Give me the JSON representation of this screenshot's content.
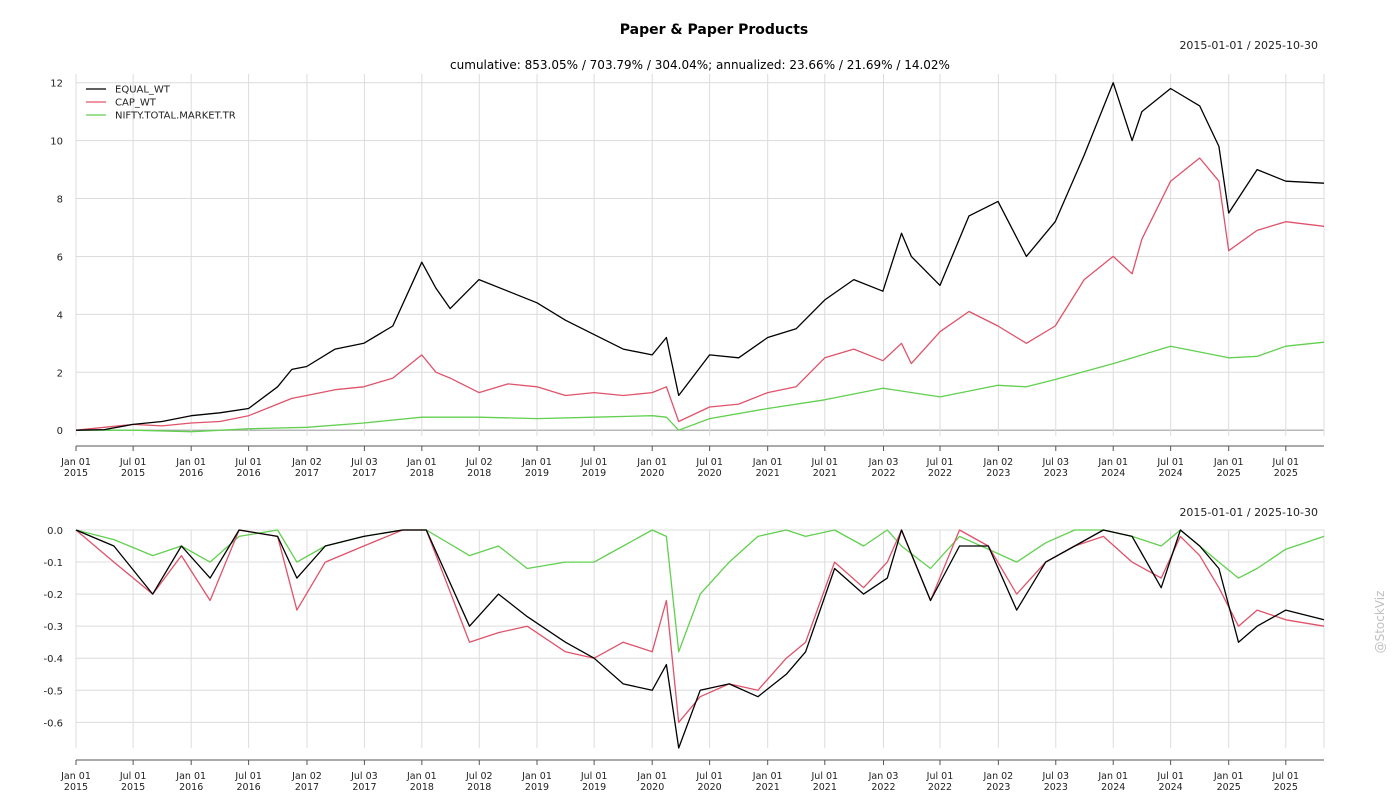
{
  "title": "Paper & Paper Products",
  "watermark": "@StockViz",
  "colors": {
    "EQUAL_WT": "#000000",
    "CAP_WT": "#df536b",
    "NIFTY.TOTAL.MARKET.TR": "#61d04f",
    "grid": "#dcdcdc",
    "zero_line": "#a0a0a0",
    "watermark": "#c0c0c0"
  },
  "chart_data": [
    {
      "type": "line",
      "title": "Paper & Paper Products",
      "subtitle": "cumulative: 853.05% / 703.79% / 304.04%; annualized: 23.66% / 21.69% / 14.02%",
      "date_range": "2015-01-01 / 2025-10-30",
      "x_range": [
        "2015-01-01",
        "2025-10-30"
      ],
      "ylim": [
        -0.2,
        12.3
      ],
      "y_ticks": [
        0,
        2,
        4,
        6,
        8,
        10,
        12
      ],
      "y_tick_labels": [
        "0",
        "2",
        "4",
        "6",
        "8",
        "10",
        "12"
      ],
      "x_ticks": [
        "2015-01-01",
        "2015-07-01",
        "2016-01-01",
        "2016-07-01",
        "2017-01-02",
        "2017-07-03",
        "2018-01-01",
        "2018-07-02",
        "2019-01-01",
        "2019-07-01",
        "2020-01-01",
        "2020-07-01",
        "2021-01-01",
        "2021-07-01",
        "2022-01-03",
        "2022-07-01",
        "2023-01-02",
        "2023-07-03",
        "2024-01-01",
        "2024-07-01",
        "2025-01-01",
        "2025-07-01"
      ],
      "x_tick_labels": [
        [
          "Jan 01",
          "2015"
        ],
        [
          "Jul 01",
          "2015"
        ],
        [
          "Jan 01",
          "2016"
        ],
        [
          "Jul 01",
          "2016"
        ],
        [
          "Jan 02",
          "2017"
        ],
        [
          "Jul 03",
          "2017"
        ],
        [
          "Jan 01",
          "2018"
        ],
        [
          "Jul 02",
          "2018"
        ],
        [
          "Jan 01",
          "2019"
        ],
        [
          "Jul 01",
          "2019"
        ],
        [
          "Jan 01",
          "2020"
        ],
        [
          "Jul 01",
          "2020"
        ],
        [
          "Jan 01",
          "2021"
        ],
        [
          "Jul 01",
          "2021"
        ],
        [
          "Jan 03",
          "2022"
        ],
        [
          "Jul 01",
          "2022"
        ],
        [
          "Jan 02",
          "2023"
        ],
        [
          "Jul 03",
          "2023"
        ],
        [
          "Jan 01",
          "2024"
        ],
        [
          "Jul 01",
          "2024"
        ],
        [
          "Jan 01",
          "2025"
        ],
        [
          "Jul 01",
          "2025"
        ]
      ],
      "grid": true,
      "legend": "top-left",
      "series": [
        {
          "name": "EQUAL_WT",
          "x": [
            "2015-01-01",
            "2015-04-01",
            "2015-07-01",
            "2015-10-01",
            "2016-01-01",
            "2016-04-01",
            "2016-07-01",
            "2016-10-01",
            "2016-11-15",
            "2017-01-01",
            "2017-04-01",
            "2017-07-01",
            "2017-10-01",
            "2018-01-01",
            "2018-02-15",
            "2018-04-01",
            "2018-07-01",
            "2018-10-01",
            "2019-01-01",
            "2019-04-01",
            "2019-07-01",
            "2019-10-01",
            "2020-01-01",
            "2020-02-15",
            "2020-03-25",
            "2020-07-01",
            "2020-10-01",
            "2021-01-01",
            "2021-04-01",
            "2021-07-01",
            "2021-10-01",
            "2022-01-01",
            "2022-03-01",
            "2022-04-01",
            "2022-07-01",
            "2022-10-01",
            "2023-01-01",
            "2023-04-01",
            "2023-07-01",
            "2023-10-01",
            "2024-01-01",
            "2024-03-01",
            "2024-04-01",
            "2024-07-01",
            "2024-10-01",
            "2024-12-01",
            "2025-01-01",
            "2025-04-01",
            "2025-07-01",
            "2025-10-30"
          ],
          "values": [
            0.0,
            0.02,
            0.2,
            0.3,
            0.5,
            0.6,
            0.75,
            1.5,
            2.1,
            2.2,
            2.8,
            3.0,
            3.6,
            5.8,
            4.9,
            4.2,
            5.2,
            4.8,
            4.4,
            3.8,
            3.3,
            2.8,
            2.6,
            3.2,
            1.2,
            2.6,
            2.5,
            3.2,
            3.5,
            4.5,
            5.2,
            4.8,
            6.8,
            6.0,
            5.0,
            7.4,
            7.9,
            6.0,
            7.2,
            9.5,
            12.0,
            10.0,
            11.0,
            11.8,
            11.2,
            9.8,
            7.5,
            9.0,
            8.6,
            8.53
          ]
        },
        {
          "name": "CAP_WT",
          "x": [
            "2015-01-01",
            "2015-04-01",
            "2015-07-01",
            "2015-10-01",
            "2016-01-01",
            "2016-04-01",
            "2016-07-01",
            "2016-10-01",
            "2016-11-15",
            "2017-01-01",
            "2017-04-01",
            "2017-07-01",
            "2017-10-01",
            "2018-01-01",
            "2018-02-15",
            "2018-04-01",
            "2018-07-01",
            "2018-10-01",
            "2019-01-01",
            "2019-04-01",
            "2019-07-01",
            "2019-10-01",
            "2020-01-01",
            "2020-02-15",
            "2020-03-25",
            "2020-07-01",
            "2020-10-01",
            "2021-01-01",
            "2021-04-01",
            "2021-07-01",
            "2021-10-01",
            "2022-01-01",
            "2022-03-01",
            "2022-04-01",
            "2022-07-01",
            "2022-10-01",
            "2023-01-01",
            "2023-04-01",
            "2023-07-01",
            "2023-10-01",
            "2024-01-01",
            "2024-03-01",
            "2024-04-01",
            "2024-07-01",
            "2024-10-01",
            "2024-12-01",
            "2025-01-01",
            "2025-04-01",
            "2025-07-01",
            "2025-10-30"
          ],
          "values": [
            0.0,
            0.1,
            0.2,
            0.15,
            0.25,
            0.3,
            0.5,
            0.9,
            1.1,
            1.2,
            1.4,
            1.5,
            1.8,
            2.6,
            2.0,
            1.8,
            1.3,
            1.6,
            1.5,
            1.2,
            1.3,
            1.2,
            1.3,
            1.5,
            0.3,
            0.8,
            0.9,
            1.3,
            1.5,
            2.5,
            2.8,
            2.4,
            3.0,
            2.3,
            3.4,
            4.1,
            3.6,
            3.0,
            3.6,
            5.2,
            6.0,
            5.4,
            6.6,
            8.6,
            9.4,
            8.6,
            6.2,
            6.9,
            7.2,
            7.04
          ]
        },
        {
          "name": "NIFTY.TOTAL.MARKET.TR",
          "x": [
            "2015-01-01",
            "2015-07-01",
            "2016-01-01",
            "2016-07-01",
            "2017-01-01",
            "2017-07-01",
            "2018-01-01",
            "2018-07-01",
            "2019-01-01",
            "2019-07-01",
            "2020-01-01",
            "2020-02-15",
            "2020-03-25",
            "2020-07-01",
            "2021-01-01",
            "2021-07-01",
            "2022-01-01",
            "2022-07-01",
            "2023-01-01",
            "2023-04-01",
            "2023-07-01",
            "2024-01-01",
            "2024-07-01",
            "2024-10-01",
            "2025-01-01",
            "2025-04-01",
            "2025-07-01",
            "2025-10-30"
          ],
          "values": [
            0.0,
            0.0,
            -0.05,
            0.05,
            0.1,
            0.25,
            0.45,
            0.45,
            0.4,
            0.45,
            0.5,
            0.45,
            0.0,
            0.4,
            0.75,
            1.05,
            1.45,
            1.15,
            1.55,
            1.5,
            1.75,
            2.3,
            2.9,
            2.7,
            2.5,
            2.55,
            2.9,
            3.04
          ]
        }
      ]
    },
    {
      "type": "line",
      "date_range": "2015-01-01 / 2025-10-30",
      "x_range": [
        "2015-01-01",
        "2025-10-30"
      ],
      "ylim": [
        -0.68,
        0.0
      ],
      "y_ticks": [
        0.0,
        -0.1,
        -0.2,
        -0.3,
        -0.4,
        -0.5,
        -0.6
      ],
      "y_tick_labels": [
        "0.0",
        "-0.1",
        "-0.2",
        "-0.3",
        "-0.4",
        "-0.5",
        "-0.6"
      ],
      "grid": true,
      "series": [
        {
          "name": "EQUAL_WT",
          "x": [
            "2015-01-01",
            "2015-05-01",
            "2015-09-01",
            "2015-12-01",
            "2016-03-01",
            "2016-06-01",
            "2016-10-01",
            "2016-12-01",
            "2017-03-01",
            "2017-07-01",
            "2017-11-01",
            "2018-01-15",
            "2018-06-01",
            "2018-09-01",
            "2018-12-01",
            "2019-04-01",
            "2019-07-01",
            "2019-10-01",
            "2020-01-01",
            "2020-02-15",
            "2020-03-25",
            "2020-06-01",
            "2020-09-01",
            "2020-12-01",
            "2021-03-01",
            "2021-05-01",
            "2021-08-01",
            "2021-11-01",
            "2022-01-15",
            "2022-03-01",
            "2022-06-01",
            "2022-09-01",
            "2022-12-01",
            "2023-03-01",
            "2023-06-01",
            "2023-09-01",
            "2023-12-01",
            "2024-03-01",
            "2024-06-01",
            "2024-08-01",
            "2024-10-01",
            "2024-12-01",
            "2025-02-01",
            "2025-04-01",
            "2025-07-01",
            "2025-10-30"
          ],
          "values": [
            0.0,
            -0.05,
            -0.2,
            -0.05,
            -0.15,
            0.0,
            -0.02,
            -0.15,
            -0.05,
            -0.02,
            0.0,
            0.0,
            -0.3,
            -0.2,
            -0.27,
            -0.35,
            -0.4,
            -0.48,
            -0.5,
            -0.42,
            -0.68,
            -0.5,
            -0.48,
            -0.52,
            -0.45,
            -0.38,
            -0.12,
            -0.2,
            -0.15,
            0.0,
            -0.22,
            -0.05,
            -0.05,
            -0.25,
            -0.1,
            -0.05,
            0.0,
            -0.02,
            -0.18,
            0.0,
            -0.05,
            -0.12,
            -0.35,
            -0.3,
            -0.25,
            -0.28
          ]
        },
        {
          "name": "CAP_WT",
          "x": [
            "2015-01-01",
            "2015-05-01",
            "2015-09-01",
            "2015-12-01",
            "2016-03-01",
            "2016-06-01",
            "2016-10-01",
            "2016-12-01",
            "2017-03-01",
            "2017-07-01",
            "2017-11-01",
            "2018-01-15",
            "2018-06-01",
            "2018-09-01",
            "2018-12-01",
            "2019-04-01",
            "2019-07-01",
            "2019-10-01",
            "2020-01-01",
            "2020-02-15",
            "2020-03-25",
            "2020-06-01",
            "2020-09-01",
            "2020-12-01",
            "2021-03-01",
            "2021-05-01",
            "2021-08-01",
            "2021-11-01",
            "2022-01-15",
            "2022-03-01",
            "2022-06-01",
            "2022-09-01",
            "2022-12-01",
            "2023-03-01",
            "2023-06-01",
            "2023-09-01",
            "2023-12-01",
            "2024-03-01",
            "2024-06-01",
            "2024-08-01",
            "2024-10-01",
            "2024-12-01",
            "2025-02-01",
            "2025-04-01",
            "2025-07-01",
            "2025-10-30"
          ],
          "values": [
            0.0,
            -0.1,
            -0.2,
            -0.08,
            -0.22,
            0.0,
            -0.02,
            -0.25,
            -0.1,
            -0.05,
            0.0,
            0.0,
            -0.35,
            -0.32,
            -0.3,
            -0.38,
            -0.4,
            -0.35,
            -0.38,
            -0.22,
            -0.6,
            -0.52,
            -0.48,
            -0.5,
            -0.4,
            -0.35,
            -0.1,
            -0.18,
            -0.1,
            0.0,
            -0.22,
            0.0,
            -0.05,
            -0.2,
            -0.1,
            -0.05,
            -0.02,
            -0.1,
            -0.15,
            -0.02,
            -0.08,
            -0.18,
            -0.3,
            -0.25,
            -0.28,
            -0.3
          ]
        },
        {
          "name": "NIFTY.TOTAL.MARKET.TR",
          "x": [
            "2015-01-01",
            "2015-05-01",
            "2015-09-01",
            "2015-12-01",
            "2016-03-01",
            "2016-06-01",
            "2016-10-01",
            "2016-12-01",
            "2017-03-01",
            "2017-07-01",
            "2017-11-01",
            "2018-01-15",
            "2018-06-01",
            "2018-09-01",
            "2018-12-01",
            "2019-04-01",
            "2019-07-01",
            "2019-10-01",
            "2020-01-01",
            "2020-02-15",
            "2020-03-25",
            "2020-06-01",
            "2020-09-01",
            "2020-12-01",
            "2021-03-01",
            "2021-05-01",
            "2021-08-01",
            "2021-11-01",
            "2022-01-15",
            "2022-03-01",
            "2022-06-01",
            "2022-09-01",
            "2022-12-01",
            "2023-03-01",
            "2023-06-01",
            "2023-09-01",
            "2023-12-01",
            "2024-03-01",
            "2024-06-01",
            "2024-08-01",
            "2024-10-01",
            "2024-12-01",
            "2025-02-01",
            "2025-04-01",
            "2025-07-01",
            "2025-10-30"
          ],
          "values": [
            0.0,
            -0.03,
            -0.08,
            -0.05,
            -0.1,
            -0.02,
            0.0,
            -0.1,
            -0.05,
            -0.02,
            0.0,
            0.0,
            -0.08,
            -0.05,
            -0.12,
            -0.1,
            -0.1,
            -0.05,
            0.0,
            -0.02,
            -0.38,
            -0.2,
            -0.1,
            -0.02,
            0.0,
            -0.02,
            0.0,
            -0.05,
            0.0,
            -0.05,
            -0.12,
            -0.02,
            -0.06,
            -0.1,
            -0.04,
            0.0,
            0.0,
            -0.02,
            -0.05,
            0.0,
            -0.05,
            -0.1,
            -0.15,
            -0.12,
            -0.06,
            -0.02
          ]
        }
      ]
    }
  ]
}
